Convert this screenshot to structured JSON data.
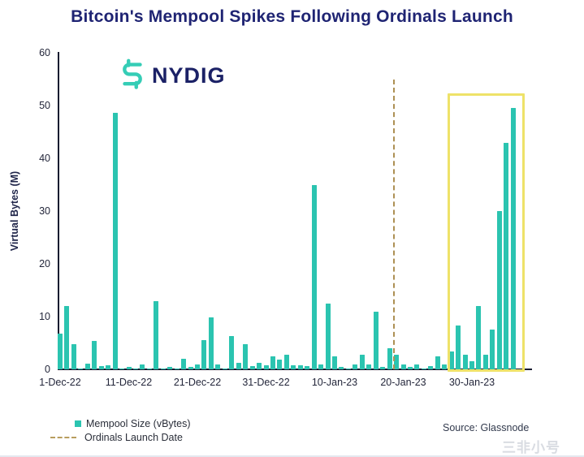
{
  "title": "Bitcoin's Mempool Spikes Following Ordinals Launch",
  "logo": {
    "text": "NYDIG"
  },
  "chart_data": {
    "type": "bar",
    "title": "Bitcoin's Mempool Spikes Following Ordinals Launch",
    "xlabel": "",
    "ylabel": "Virtual Bytes (M)",
    "ylim": [
      0,
      60
    ],
    "y_ticks": [
      0,
      10,
      20,
      30,
      40,
      50,
      60
    ],
    "grid": false,
    "legend_position": "bottom-left",
    "bar_color": "#2bc4b0",
    "dates": [
      "1-Dec-22",
      "2-Dec-22",
      "3-Dec-22",
      "4-Dec-22",
      "5-Dec-22",
      "6-Dec-22",
      "7-Dec-22",
      "8-Dec-22",
      "9-Dec-22",
      "10-Dec-22",
      "11-Dec-22",
      "12-Dec-22",
      "13-Dec-22",
      "14-Dec-22",
      "15-Dec-22",
      "16-Dec-22",
      "17-Dec-22",
      "18-Dec-22",
      "19-Dec-22",
      "20-Dec-22",
      "21-Dec-22",
      "22-Dec-22",
      "23-Dec-22",
      "24-Dec-22",
      "25-Dec-22",
      "26-Dec-22",
      "27-Dec-22",
      "28-Dec-22",
      "29-Dec-22",
      "30-Dec-22",
      "31-Dec-22",
      "1-Jan-23",
      "2-Jan-23",
      "3-Jan-23",
      "4-Jan-23",
      "5-Jan-23",
      "6-Jan-23",
      "7-Jan-23",
      "8-Jan-23",
      "9-Jan-23",
      "10-Jan-23",
      "11-Jan-23",
      "12-Jan-23",
      "13-Jan-23",
      "14-Jan-23",
      "15-Jan-23",
      "16-Jan-23",
      "17-Jan-23",
      "18-Jan-23",
      "19-Jan-23",
      "20-Jan-23",
      "21-Jan-23",
      "22-Jan-23",
      "23-Jan-23",
      "24-Jan-23",
      "25-Jan-23",
      "26-Jan-23",
      "27-Jan-23",
      "28-Jan-23",
      "29-Jan-23",
      "30-Jan-23",
      "31-Jan-23",
      "1-Feb-23",
      "2-Feb-23",
      "3-Feb-23",
      "4-Feb-23",
      "5-Feb-23"
    ],
    "values": [
      6.8,
      12.0,
      4.7,
      0.2,
      1.1,
      5.4,
      0.6,
      0.8,
      48.6,
      0.2,
      0.4,
      0.2,
      1.0,
      0.2,
      13.0,
      0.2,
      0.5,
      0.2,
      2.0,
      0.4,
      0.9,
      5.5,
      9.8,
      1.0,
      0.2,
      6.3,
      1.2,
      4.8,
      0.6,
      1.2,
      0.7,
      2.5,
      1.8,
      2.8,
      0.8,
      0.8,
      0.6,
      35.0,
      1.0,
      12.5,
      2.5,
      0.5,
      0.2,
      0.9,
      2.7,
      1.0,
      11.0,
      0.5,
      4.0,
      2.7,
      0.9,
      0.4,
      1.0,
      0.2,
      0.6,
      2.4,
      1.0,
      3.4,
      8.3,
      2.8,
      1.5,
      12.0,
      2.8,
      7.5,
      30.0,
      43.0,
      49.5
    ],
    "x_ticks": [
      {
        "day": 0,
        "label": "1-Dec-22"
      },
      {
        "day": 10,
        "label": "11-Dec-22"
      },
      {
        "day": 20,
        "label": "21-Dec-22"
      },
      {
        "day": 30,
        "label": "31-Dec-22"
      },
      {
        "day": 40,
        "label": "10-Jan-23"
      },
      {
        "day": 50,
        "label": "20-Jan-23"
      },
      {
        "day": 60,
        "label": "30-Jan-23"
      }
    ],
    "annotation_line": {
      "label": "Ordinals Launch Date",
      "day": 48.5,
      "top_value": 55,
      "color": "#ad9054"
    },
    "highlight_box": {
      "day_start": 56.5,
      "day_end": 67.7,
      "top_value": 52.3,
      "color": "#eee269"
    }
  },
  "legend": {
    "items": [
      {
        "label": "Mempool Size (vBytes)",
        "swatch": "square",
        "color": "#2bc4b0"
      },
      {
        "label": "Ordinals Launch Date",
        "swatch": "dash",
        "color": "#b89d5e"
      }
    ]
  },
  "source": {
    "label": "Source: Glassnode"
  },
  "watermark": {
    "text": "三非小号"
  }
}
